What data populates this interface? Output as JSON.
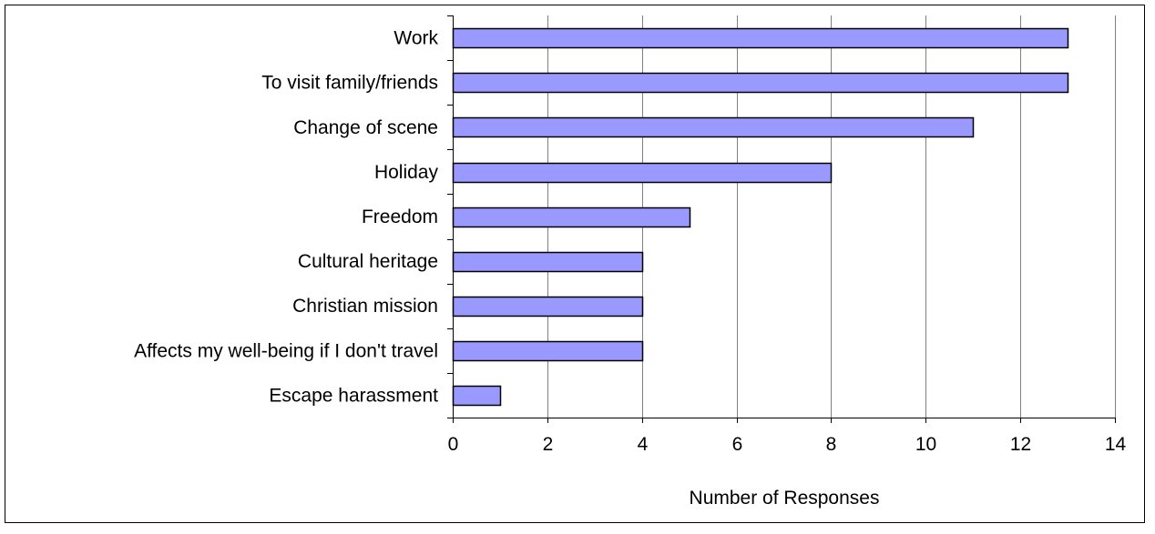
{
  "chart_data": {
    "type": "bar",
    "orientation": "horizontal",
    "title": "",
    "xlabel": "Number of Responses",
    "ylabel": "",
    "categories": [
      "Work",
      "To visit family/friends",
      "Change of scene",
      "Holiday",
      "Freedom",
      "Cultural heritage",
      "Christian mission",
      "Affects my well-being if I don't travel",
      "Escape harassment"
    ],
    "values": [
      13,
      13,
      11,
      8,
      5,
      4,
      4,
      4,
      1
    ],
    "xlim": [
      0,
      14
    ],
    "xticks": [
      "0",
      "2",
      "4",
      "6",
      "8",
      "10",
      "12",
      "14"
    ],
    "grid": "vertical",
    "legend": "none",
    "bar_color": "#9999ff",
    "bar_edge_color": "#000000",
    "grid_color": "#808080"
  }
}
